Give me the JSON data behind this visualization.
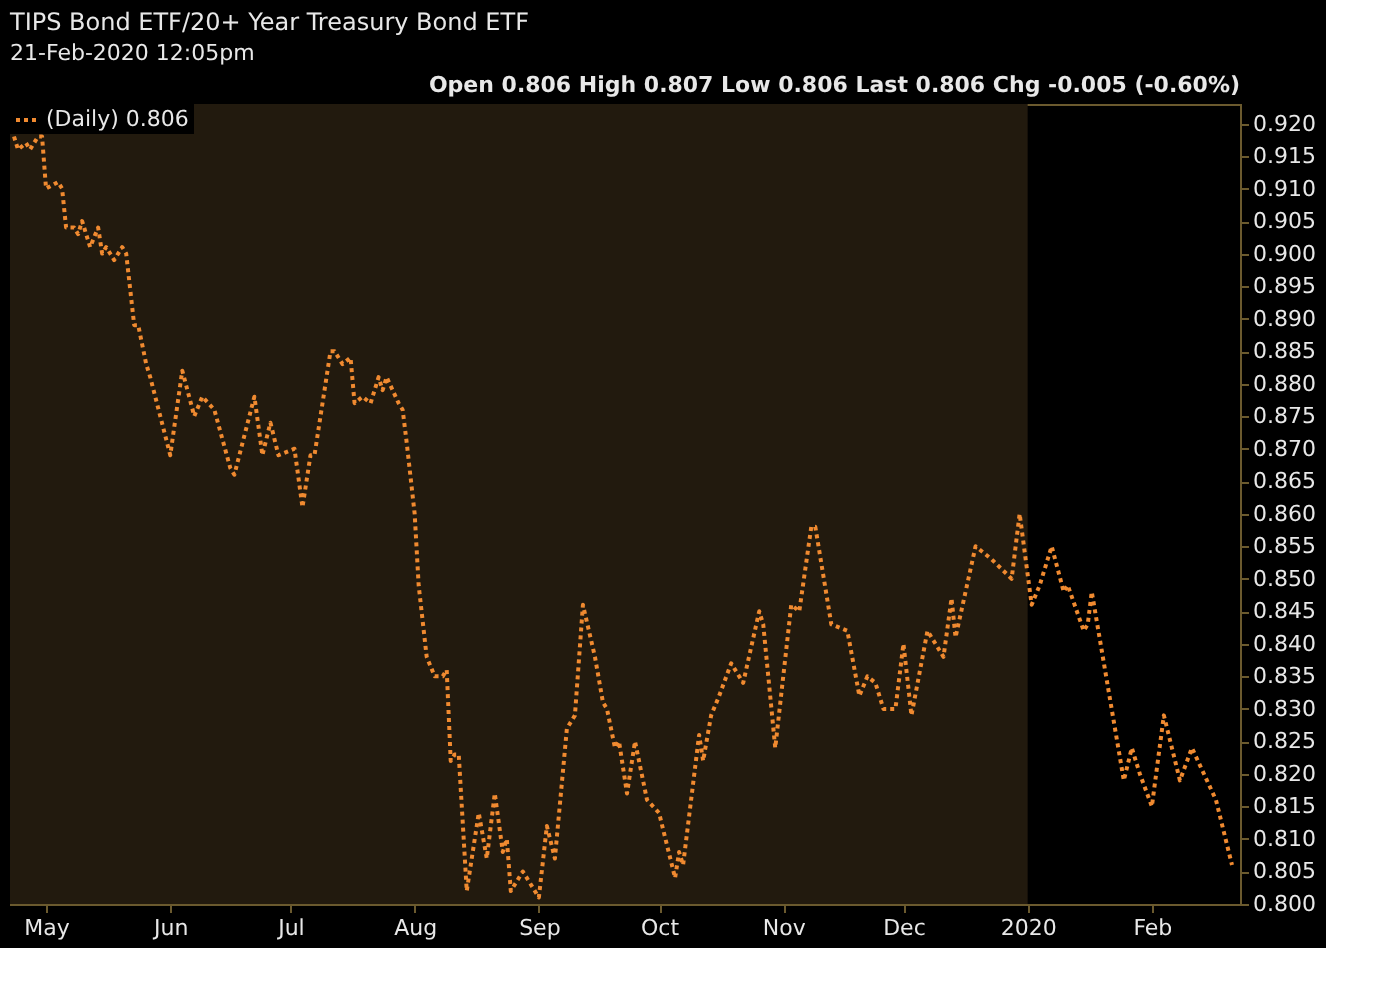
{
  "chart_data": {
    "type": "line",
    "title": "TIPS Bond ETF/20+ Year Treasury Bond ETF",
    "subtitle": "21-Feb-2020 12:05pm",
    "annotations": [
      "Open 0.806  High 0.807  Low 0.806  Last 0.806  Chg -0.005 (-0.60%)"
    ],
    "x": [
      "2019-04-23",
      "2019-04-24",
      "2019-04-26",
      "2019-04-27",
      "2019-04-29",
      "2019-04-30",
      "2019-05-01",
      "2019-05-04",
      "2019-05-05",
      "2019-05-06",
      "2019-05-08",
      "2019-05-09",
      "2019-05-10",
      "2019-05-12",
      "2019-05-14",
      "2019-05-15",
      "2019-05-16",
      "2019-05-18",
      "2019-05-20",
      "2019-05-21",
      "2019-05-23",
      "2019-05-24",
      "2019-05-26",
      "2019-05-27",
      "2019-06-01",
      "2019-06-04",
      "2019-06-07",
      "2019-06-09",
      "2019-06-12",
      "2019-06-16",
      "2019-06-17",
      "2019-06-22",
      "2019-06-24",
      "2019-06-26",
      "2019-06-28",
      "2019-07-02",
      "2019-07-04",
      "2019-07-06",
      "2019-07-07",
      "2019-07-11",
      "2019-07-12",
      "2019-07-14",
      "2019-07-16",
      "2019-07-17",
      "2019-07-19",
      "2019-07-21",
      "2019-07-23",
      "2019-07-24",
      "2019-07-25",
      "2019-07-28",
      "2019-07-29",
      "2019-07-30",
      "2019-08-01",
      "2019-08-02",
      "2019-08-04",
      "2019-08-06",
      "2019-08-08",
      "2019-08-09",
      "2019-08-10",
      "2019-08-11",
      "2019-08-12",
      "2019-08-14",
      "2019-08-17",
      "2019-08-19",
      "2019-08-21",
      "2019-08-23",
      "2019-08-24",
      "2019-08-25",
      "2019-08-28",
      "2019-09-01",
      "2019-09-03",
      "2019-09-05",
      "2019-09-08",
      "2019-09-10",
      "2019-09-12",
      "2019-09-15",
      "2019-09-17",
      "2019-09-18",
      "2019-09-20",
      "2019-09-21",
      "2019-09-23",
      "2019-09-25",
      "2019-09-28",
      "2019-10-01",
      "2019-10-05",
      "2019-10-06",
      "2019-10-07",
      "2019-10-11",
      "2019-10-12",
      "2019-10-14",
      "2019-10-16",
      "2019-10-19",
      "2019-10-22",
      "2019-10-26",
      "2019-10-27",
      "2019-10-30",
      "2019-11-03",
      "2019-11-05",
      "2019-11-08",
      "2019-11-09",
      "2019-11-13",
      "2019-11-17",
      "2019-11-20",
      "2019-11-22",
      "2019-11-24",
      "2019-11-26",
      "2019-11-29",
      "2019-12-01",
      "2019-12-03",
      "2019-12-07",
      "2019-12-11",
      "2019-12-13",
      "2019-12-14",
      "2019-12-19",
      "2019-12-23",
      "2019-12-28",
      "2019-12-30",
      "2020-01-02",
      "2020-01-04",
      "2020-01-07",
      "2020-01-10",
      "2020-01-11",
      "2020-01-15",
      "2020-01-16",
      "2020-01-17",
      "2020-01-25",
      "2020-01-27",
      "2020-01-29",
      "2020-02-01",
      "2020-02-04",
      "2020-02-08",
      "2020-02-11",
      "2020-02-17",
      "2020-02-21"
    ],
    "series": [
      {
        "name": "(Daily) 0.806",
        "color": "#f08a30",
        "values": [
          0.918,
          0.916,
          0.917,
          0.916,
          0.918,
          0.918,
          0.91,
          0.911,
          0.91,
          0.904,
          0.904,
          0.903,
          0.905,
          0.901,
          0.904,
          0.9,
          0.901,
          0.899,
          0.901,
          0.9,
          0.889,
          0.889,
          0.883,
          0.881,
          0.869,
          0.882,
          0.875,
          0.878,
          0.876,
          0.867,
          0.866,
          0.878,
          0.869,
          0.874,
          0.869,
          0.87,
          0.861,
          0.869,
          0.869,
          0.885,
          0.885,
          0.883,
          0.884,
          0.877,
          0.878,
          0.877,
          0.881,
          0.879,
          0.881,
          0.877,
          0.876,
          0.871,
          0.86,
          0.849,
          0.838,
          0.835,
          0.835,
          0.836,
          0.822,
          0.823,
          0.823,
          0.802,
          0.814,
          0.807,
          0.817,
          0.808,
          0.81,
          0.802,
          0.805,
          0.801,
          0.812,
          0.807,
          0.827,
          0.829,
          0.846,
          0.838,
          0.831,
          0.83,
          0.824,
          0.825,
          0.817,
          0.825,
          0.816,
          0.814,
          0.804,
          0.808,
          0.806,
          0.826,
          0.822,
          0.829,
          0.832,
          0.837,
          0.834,
          0.845,
          0.843,
          0.824,
          0.846,
          0.845,
          0.858,
          0.858,
          0.843,
          0.842,
          0.832,
          0.835,
          0.834,
          0.83,
          0.83,
          0.84,
          0.829,
          0.842,
          0.838,
          0.847,
          0.841,
          0.855,
          0.853,
          0.85,
          0.86,
          0.846,
          0.849,
          0.855,
          0.848,
          0.849,
          0.842,
          0.843,
          0.848,
          0.819,
          0.824,
          0.82,
          0.815,
          0.829,
          0.819,
          0.824,
          0.816,
          0.806
        ]
      }
    ],
    "xlim": [
      "2019-04-22",
      "2020-02-23"
    ],
    "xticks": [
      {
        "value": "2019-05-01",
        "label": "May"
      },
      {
        "value": "2019-06-01",
        "label": "Jun"
      },
      {
        "value": "2019-07-01",
        "label": "Jul"
      },
      {
        "value": "2019-08-01",
        "label": "Aug"
      },
      {
        "value": "2019-09-01",
        "label": "Sep"
      },
      {
        "value": "2019-10-01",
        "label": "Oct"
      },
      {
        "value": "2019-11-01",
        "label": "Nov"
      },
      {
        "value": "2019-12-01",
        "label": "Dec"
      },
      {
        "value": "2020-01-01",
        "label": "2020"
      },
      {
        "value": "2020-02-01",
        "label": "Feb"
      }
    ],
    "ylim": [
      0.8,
      0.923
    ],
    "yticks": [
      {
        "value": 0.8,
        "label": "0.800"
      },
      {
        "value": 0.805,
        "label": "0.805"
      },
      {
        "value": 0.81,
        "label": "0.810"
      },
      {
        "value": 0.815,
        "label": "0.815"
      },
      {
        "value": 0.82,
        "label": "0.820"
      },
      {
        "value": 0.825,
        "label": "0.825"
      },
      {
        "value": 0.83,
        "label": "0.830"
      },
      {
        "value": 0.835,
        "label": "0.835"
      },
      {
        "value": 0.84,
        "label": "0.840"
      },
      {
        "value": 0.845,
        "label": "0.845"
      },
      {
        "value": 0.85,
        "label": "0.850"
      },
      {
        "value": 0.855,
        "label": "0.855"
      },
      {
        "value": 0.86,
        "label": "0.860"
      },
      {
        "value": 0.865,
        "label": "0.865"
      },
      {
        "value": 0.87,
        "label": "0.870"
      },
      {
        "value": 0.875,
        "label": "0.875"
      },
      {
        "value": 0.88,
        "label": "0.880"
      },
      {
        "value": 0.885,
        "label": "0.885"
      },
      {
        "value": 0.89,
        "label": "0.890"
      },
      {
        "value": 0.895,
        "label": "0.895"
      },
      {
        "value": 0.9,
        "label": "0.900"
      },
      {
        "value": 0.905,
        "label": "0.905"
      },
      {
        "value": 0.91,
        "label": "0.910"
      },
      {
        "value": 0.915,
        "label": "0.915"
      },
      {
        "value": 0.92,
        "label": "0.920"
      }
    ],
    "bands": [
      {
        "axis": "x",
        "from": "2019-04-22",
        "to": "2020-01-01",
        "color": "#221a0e"
      }
    ],
    "legend": "top left",
    "grid": false,
    "marker": "none",
    "line_style": "dotted"
  }
}
